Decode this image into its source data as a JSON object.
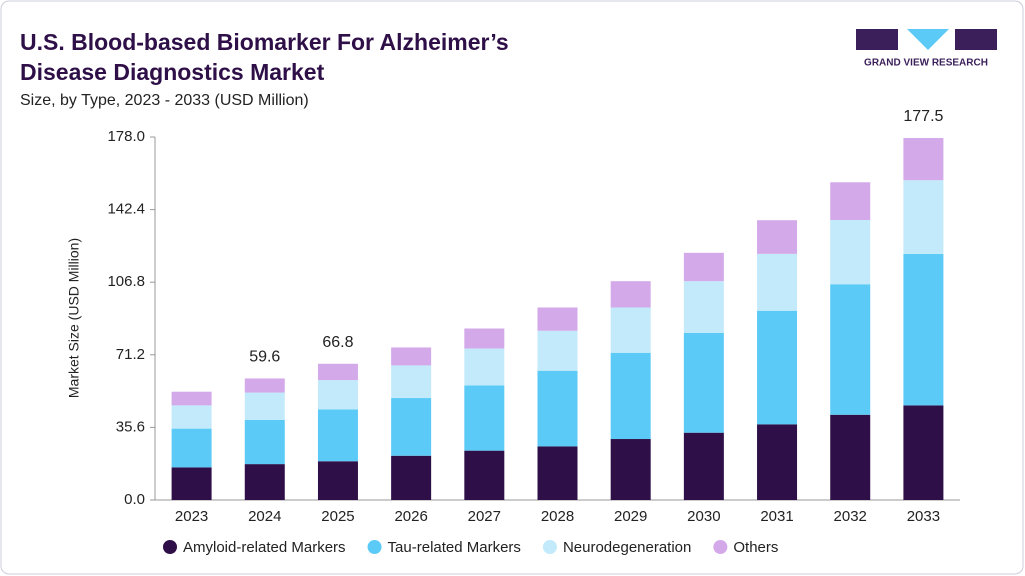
{
  "brand": "GRAND VIEW RESEARCH",
  "chart_data": {
    "type": "stacked_bar",
    "title": [
      "U.S. Blood-based Biomarker For Alzheimer’s",
      "Disease Diagnostics Market"
    ],
    "subtitle": "Size, by Type, 2023 - 2033 (USD Million)",
    "ylabel": "Market Size (USD Million)",
    "categories": [
      "2023",
      "2024",
      "2025",
      "2026",
      "2027",
      "2028",
      "2029",
      "2030",
      "2031",
      "2032",
      "2033"
    ],
    "series": [
      {
        "name": "Amyloid-related Markers",
        "color": "#2e0f47",
        "values": [
          16.0,
          17.6,
          19.0,
          21.7,
          24.2,
          26.3,
          29.9,
          33.0,
          37.1,
          41.8,
          46.4
        ]
      },
      {
        "name": "Tau-related Markers",
        "color": "#5ccaf6",
        "values": [
          19.0,
          21.7,
          25.4,
          28.3,
          32.0,
          37.1,
          42.3,
          48.9,
          55.7,
          64.0,
          74.3
        ]
      },
      {
        "name": "Neurodegeneration",
        "color": "#c2eafb",
        "values": [
          11.4,
          13.4,
          14.4,
          16.0,
          18.1,
          19.6,
          22.2,
          25.4,
          27.9,
          31.5,
          36.1
        ]
      },
      {
        "name": "Others",
        "color": "#d4a9ea",
        "values": [
          6.7,
          6.9,
          8.0,
          8.8,
          9.8,
          11.4,
          12.9,
          13.9,
          16.5,
          18.5,
          20.7
        ]
      }
    ],
    "total_labels": [
      null,
      59.6,
      66.8,
      null,
      null,
      null,
      null,
      null,
      null,
      null,
      177.5
    ],
    "ylim": [
      0,
      178
    ],
    "yticks": [
      {
        "value": 0,
        "label": "0.0"
      },
      35.6,
      71.2,
      106.8,
      142.4,
      {
        "value": 178,
        "label": "178.0"
      }
    ],
    "grid": false
  }
}
